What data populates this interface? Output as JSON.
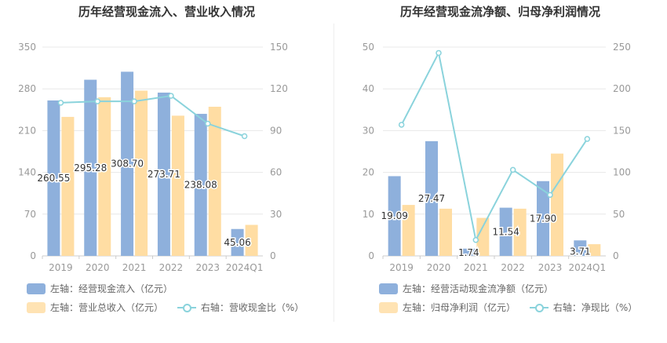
{
  "charts": [
    {
      "title": "历年经营现金流入、营业收入情况",
      "legend": {
        "bar1": "左轴：经营现金流入（亿元）",
        "bar2": "左轴：营业总收入（亿元）",
        "line": "右轴：营收现金比（%）"
      }
    },
    {
      "title": "历年经营现金流净额、归母净利润情况",
      "legend": {
        "bar1": "左轴：经营活动现金流净额（亿元）",
        "bar2": "左轴：归母净利润（亿元）",
        "line": "右轴：净现比（%）"
      }
    }
  ],
  "colors": {
    "bar1": "#8eb0dc",
    "bar2": "#ffdda3",
    "line": "#8ad3dc",
    "grid": "#e8e8e8",
    "axis": "#999999",
    "text": "#333333"
  },
  "chart_data": [
    {
      "type": "bar",
      "title": "历年经营现金流入、营业收入情况",
      "categories": [
        "2019",
        "2020",
        "2021",
        "2022",
        "2023",
        "2024Q1"
      ],
      "y_left": {
        "min": 0,
        "max": 350,
        "ticks": [
          "0",
          "70",
          "140",
          "210",
          "280",
          "350"
        ]
      },
      "y_right": {
        "min": 0,
        "max": 150,
        "ticks": [
          "0",
          "30",
          "60",
          "90",
          "120",
          "150"
        ]
      },
      "series": [
        {
          "name": "左轴：经营现金流入（亿元）",
          "type": "bar",
          "axis": "left",
          "values": [
            260.55,
            295.28,
            308.7,
            273.71,
            238.08,
            45.06
          ],
          "labels": [
            "260.55",
            "295.28",
            "308.70",
            "273.71",
            "238.08",
            "45.06"
          ]
        },
        {
          "name": "左轴：营业总收入（亿元）",
          "type": "bar",
          "axis": "left",
          "values": [
            233,
            266,
            277,
            235,
            250,
            52
          ]
        },
        {
          "name": "右轴：营收现金比（%）",
          "type": "line",
          "axis": "right",
          "values": [
            110,
            111,
            111,
            115,
            95,
            86
          ]
        }
      ]
    },
    {
      "type": "bar",
      "title": "历年经营现金流净额、归母净利润情况",
      "categories": [
        "2019",
        "2020",
        "2021",
        "2022",
        "2023",
        "2024Q1"
      ],
      "y_left": {
        "min": 0,
        "max": 50,
        "ticks": [
          "0",
          "10",
          "20",
          "30",
          "40",
          "50"
        ]
      },
      "y_right": {
        "min": 0,
        "max": 250,
        "ticks": [
          "0",
          "50",
          "100",
          "150",
          "200",
          "250"
        ]
      },
      "series": [
        {
          "name": "左轴：经营活动现金流净额（亿元）",
          "type": "bar",
          "axis": "left",
          "values": [
            19.09,
            27.47,
            1.74,
            11.54,
            17.9,
            3.71
          ],
          "labels": [
            "19.09",
            "27.47",
            "1.74",
            "11.54",
            "17.90",
            "3.71"
          ]
        },
        {
          "name": "左轴：归母净利润（亿元）",
          "type": "bar",
          "axis": "left",
          "values": [
            12.2,
            11.3,
            9.1,
            11.3,
            24.5,
            2.8
          ]
        },
        {
          "name": "右轴：净现比（%）",
          "type": "line",
          "axis": "right",
          "values": [
            157,
            243,
            19,
            103,
            73,
            140
          ]
        }
      ]
    }
  ]
}
